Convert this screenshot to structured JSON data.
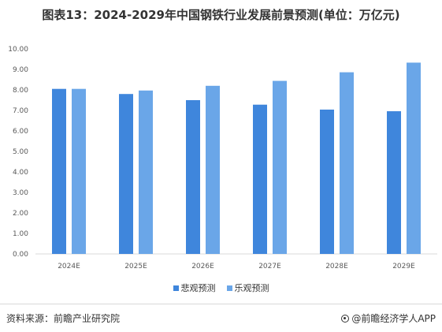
{
  "title": "图表13：2024-2029年中国钢铁行业发展前景预测(单位：万亿元)",
  "chart_data": {
    "type": "bar",
    "categories": [
      "2024E",
      "2025E",
      "2026E",
      "2027E",
      "2028E",
      "2029E"
    ],
    "series": [
      {
        "name": "悲观预测",
        "color": "#3f86dc",
        "values": [
          8.05,
          7.8,
          7.5,
          7.28,
          7.04,
          6.96
        ]
      },
      {
        "name": "乐观预测",
        "color": "#6aa6e8",
        "values": [
          8.05,
          7.97,
          8.2,
          8.44,
          8.86,
          9.33
        ]
      }
    ],
    "yticks": [
      "0.00",
      "1.00",
      "2.00",
      "3.00",
      "4.00",
      "5.00",
      "6.00",
      "7.00",
      "8.00",
      "9.00",
      "10.00"
    ],
    "ylim": [
      0,
      10
    ],
    "grid": false,
    "legend_position": "bottom"
  },
  "footer": {
    "source": "资料来源：前瞻产业研究院",
    "brand": "@前瞻经济学人APP"
  }
}
